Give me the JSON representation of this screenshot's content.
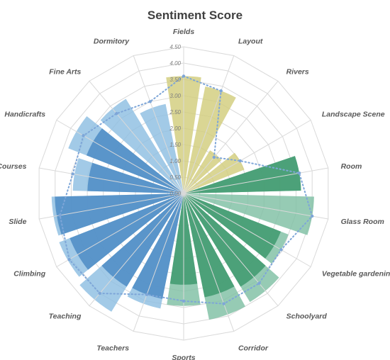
{
  "chart_data": {
    "type": "radar-bar",
    "title": "Sentiment Score",
    "categories": [
      "Fields",
      "Layout",
      "Rivers",
      "Landscape Scene",
      "Room",
      "Glass Room",
      "Vegetable gardening",
      "Schoolyard",
      "Corridor",
      "Sports",
      "Teachers",
      "Teaching",
      "Climbing",
      "Slide",
      "Courses",
      "Handicrafts",
      "Fine Arts",
      "Dormitory"
    ],
    "rlim": [
      0,
      4.5
    ],
    "ticks": [
      "0.00",
      "0.50",
      "1.00",
      "1.50",
      "2.00",
      "2.50",
      "3.00",
      "3.50",
      "4.00",
      "4.50"
    ],
    "grid": true,
    "series": [
      {
        "values": [
          3.6,
          3.35,
          1.55,
          2.0,
          3.6,
          4.0,
          3.45,
          3.9,
          3.95,
          3.45,
          3.6,
          4.25,
          4.1,
          4.05,
          3.4,
          3.8,
          3.4,
          2.8
        ],
        "colors": [
          "#d2cd7c",
          "#d2cd7c",
          "#d2cd7c",
          "#d2cd7c",
          "#7fc0a4",
          "#7fc0a4",
          "#7fc0a4",
          "#7fc0a4",
          "#7fc0a4",
          "#7fc0a4",
          "#8ebee2",
          "#8ebee2",
          "#8ebee2",
          "#8ebee2",
          "#8ebee2",
          "#8ebee2",
          "#8ebee2",
          "#8ebee2"
        ]
      },
      {
        "values": [
          0,
          0,
          0,
          0,
          3.6,
          0,
          3.2,
          3.35,
          3.25,
          2.8,
          3.3,
          3.35,
          3.75,
          3.95,
          2.95,
          3.2,
          0,
          0
        ],
        "colors": [
          "#4e8cc4",
          "#4e8cc4",
          "#4e8cc4",
          "#4e8cc4",
          "#3f9a6e",
          "#3f9a6e",
          "#3f9a6e",
          "#3f9a6e",
          "#3f9a6e",
          "#3f9a6e",
          "#4e8cc4",
          "#4e8cc4",
          "#4e8cc4",
          "#4e8cc4",
          "#4e8cc4",
          "#4e8cc4",
          "#4e8cc4",
          "#4e8cc4"
        ]
      },
      {
        "type": "line",
        "style": "dotted",
        "color": "#7ea6d8",
        "values": [
          3.6,
          3.35,
          1.45,
          2.0,
          3.6,
          4.0,
          3.45,
          3.6,
          3.6,
          3.3,
          3.3,
          4.0,
          4.05,
          3.85,
          3.45,
          3.55,
          3.2,
          3.0
        ]
      }
    ]
  }
}
